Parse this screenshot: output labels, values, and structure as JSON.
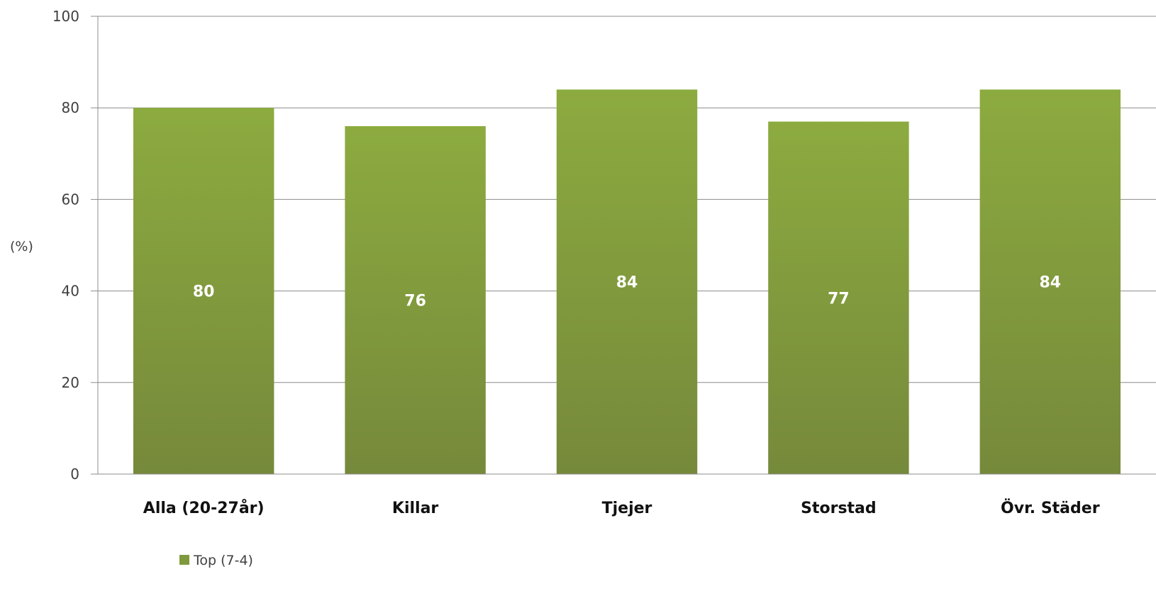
{
  "chart_data": {
    "type": "bar",
    "ylabel": "(%)",
    "xlabel": "",
    "ylim": [
      0,
      100
    ],
    "yticks": [
      0,
      20,
      40,
      60,
      80,
      100
    ],
    "grid": true,
    "legend_position": "bottom-left",
    "categories": [
      "Alla (20-27år)",
      "Killar",
      "Tjejer",
      "Storstad",
      "Övr. Städer"
    ],
    "series": [
      {
        "name": "Top (7-4)",
        "values": [
          80,
          76,
          84,
          77,
          84
        ],
        "labels": [
          "80",
          "76",
          "84",
          "77",
          "84"
        ],
        "color": "#7f9a3c"
      }
    ]
  }
}
